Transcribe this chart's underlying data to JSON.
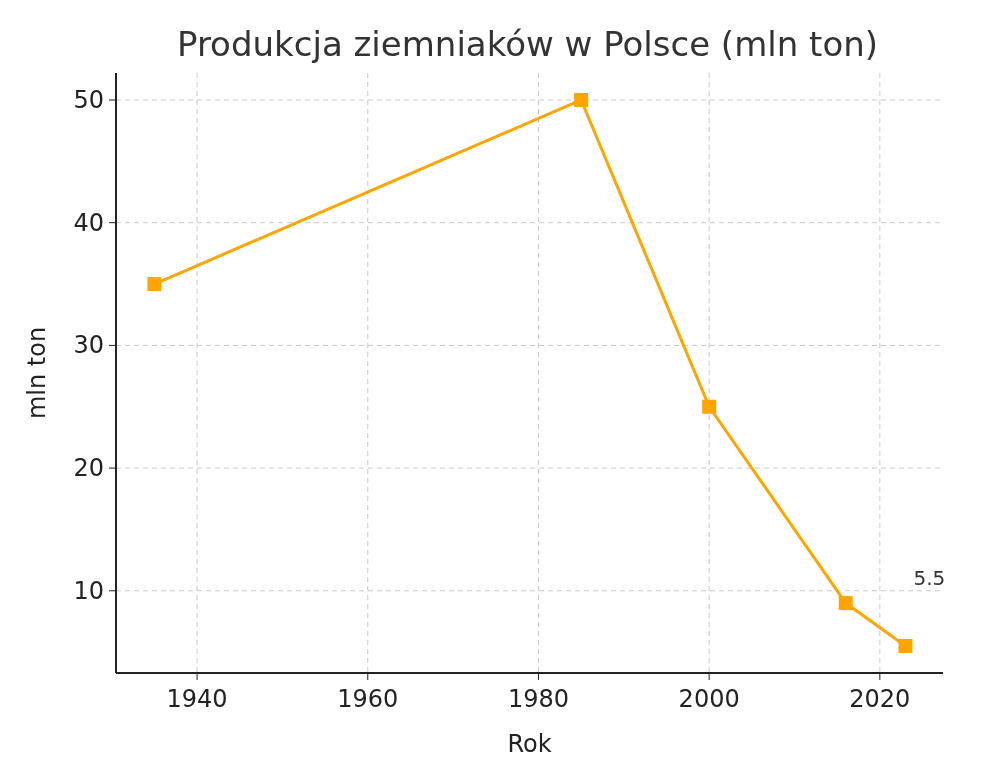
{
  "chart_data": {
    "type": "line",
    "title": "Produkcja ziemniaków w Polsce (mln ton)",
    "xlabel": "Rok",
    "ylabel": "mln ton",
    "x": [
      1935,
      1985,
      2000,
      2016,
      2023
    ],
    "series": [
      {
        "color": "#ffa500",
        "values": [
          35,
          50,
          25,
          9,
          5.5
        ]
      }
    ],
    "xlim": [
      1930.5,
      2027.4
    ],
    "ylim": [
      3.3,
      52.2
    ],
    "xticks": [
      1940,
      1960,
      1980,
      2000,
      2020
    ],
    "yticks": [
      10,
      20,
      30,
      40,
      50
    ],
    "grid": true,
    "marker": "square",
    "line_style": "solid",
    "annotations": [
      {
        "text": "5.5",
        "x": 2023,
        "y": 5.5
      }
    ]
  }
}
